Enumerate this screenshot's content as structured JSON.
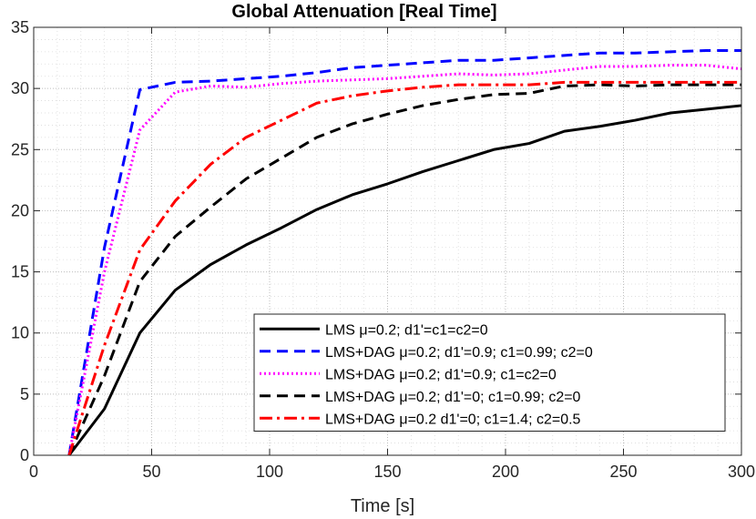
{
  "chart_data": {
    "type": "line",
    "title": "Global Attenuation [Real Time]",
    "xlabel": "Time [s]",
    "ylabel": "",
    "xlim": [
      0,
      300
    ],
    "ylim": [
      0,
      35
    ],
    "xticks": [
      0,
      50,
      100,
      150,
      200,
      250,
      300
    ],
    "yticks": [
      0,
      5,
      10,
      15,
      20,
      25,
      30,
      35
    ],
    "grid": true,
    "minor_grid": true,
    "legend_position": "bottom-right",
    "x": [
      15,
      30,
      45,
      60,
      75,
      90,
      105,
      120,
      135,
      150,
      165,
      180,
      195,
      210,
      225,
      240,
      255,
      270,
      285,
      300
    ],
    "series": [
      {
        "name": "LMS  μ=0.2; d1'=c1=c2=0",
        "color": "#000000",
        "style": "solid",
        "values": [
          0,
          3.8,
          10.0,
          13.5,
          15.6,
          17.2,
          18.6,
          20.1,
          21.3,
          22.2,
          23.2,
          24.1,
          25.0,
          25.5,
          26.5,
          26.9,
          27.4,
          28.0,
          28.3,
          28.6
        ]
      },
      {
        "name": "LMS+DAG  μ=0.2; d1'=0.9; c1=0.99; c2=0",
        "color": "#0000ff",
        "style": "dashed",
        "values": [
          0,
          17.0,
          29.9,
          30.5,
          30.6,
          30.8,
          31.0,
          31.3,
          31.7,
          31.9,
          32.1,
          32.3,
          32.3,
          32.5,
          32.7,
          32.9,
          32.9,
          33.0,
          33.1,
          33.1
        ]
      },
      {
        "name": "LMS+DAG  μ=0.2; d1'=0.9; c1=c2=0",
        "color": "#ff00ff",
        "style": "dotted",
        "values": [
          0,
          15.0,
          26.6,
          29.7,
          30.2,
          30.1,
          30.4,
          30.6,
          30.7,
          30.8,
          31.0,
          31.2,
          31.1,
          31.2,
          31.5,
          31.8,
          31.8,
          31.9,
          31.9,
          31.6
        ]
      },
      {
        "name": "LMS+DAG  μ=0.2; d1'=0; c1=0.99; c2=0",
        "color": "#000000",
        "style": "dashed",
        "values": [
          0,
          6.5,
          14.2,
          17.9,
          20.3,
          22.6,
          24.3,
          26.0,
          27.1,
          27.9,
          28.6,
          29.1,
          29.5,
          29.6,
          30.2,
          30.3,
          30.2,
          30.3,
          30.3,
          30.3
        ]
      },
      {
        "name": "LMS+DAG  μ=0.2 d1'=0; c1=1.4; c2=0.5",
        "color": "#ff0000",
        "style": "dashdot",
        "values": [
          0,
          9.0,
          16.8,
          20.8,
          23.8,
          26.0,
          27.4,
          28.8,
          29.4,
          29.8,
          30.1,
          30.3,
          30.3,
          30.3,
          30.5,
          30.5,
          30.5,
          30.5,
          30.5,
          30.5
        ]
      }
    ]
  }
}
